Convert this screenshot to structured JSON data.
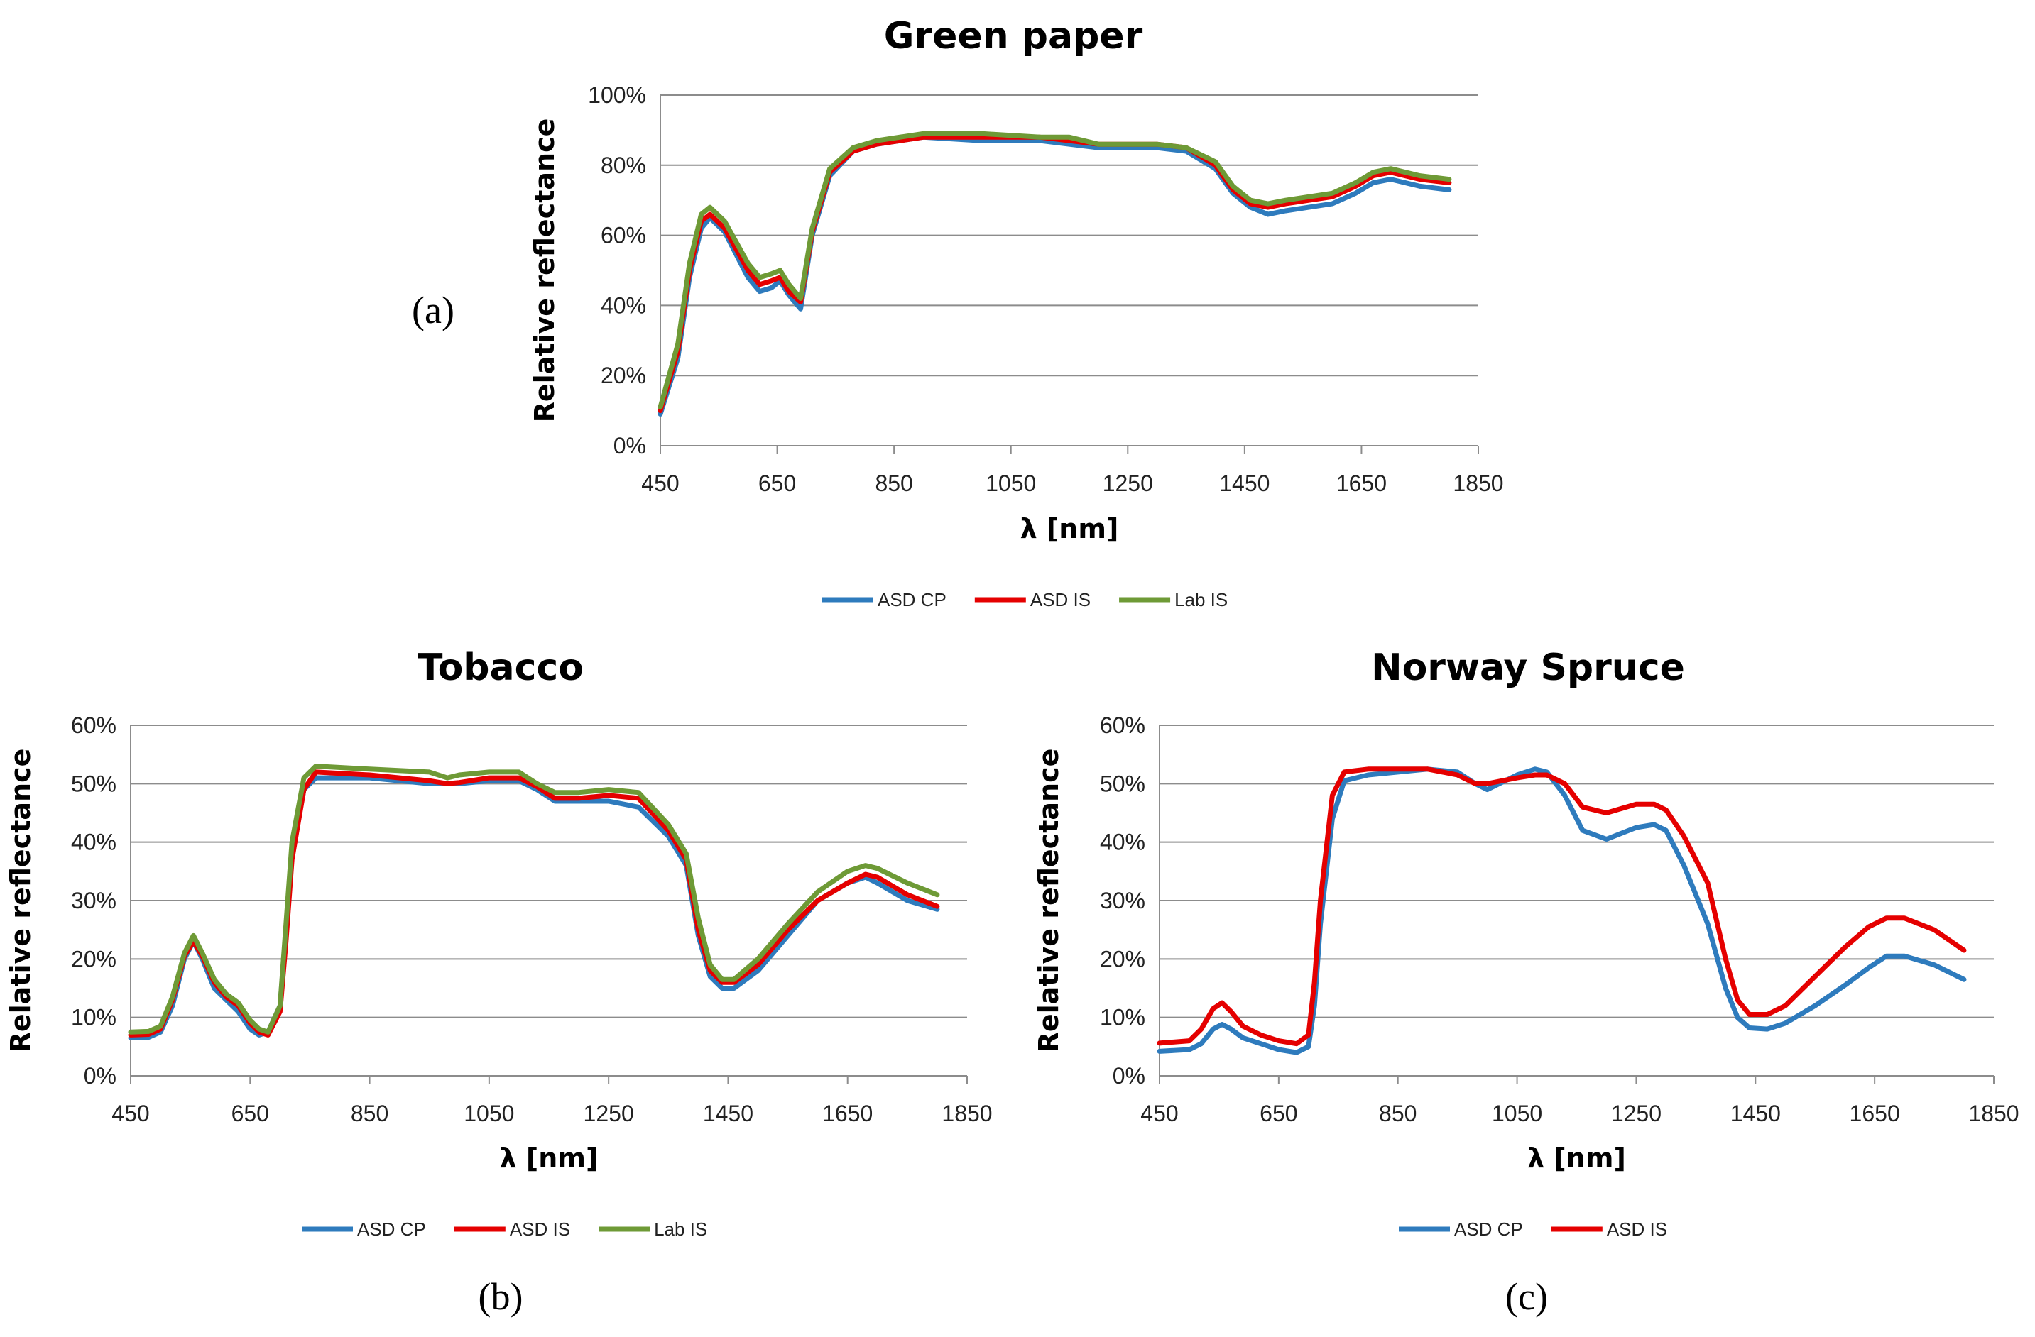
{
  "figure": {
    "panel_labels": [
      "(a)",
      "(b)",
      "(c)"
    ]
  },
  "colors": {
    "ASD CP": "#2e7bbd",
    "ASD IS": "#e50000",
    "Lab IS": "#6e9a36"
  },
  "chart_data": [
    {
      "type": "line",
      "title": "Green paper",
      "panel": "(a)",
      "xlabel": "λ [nm]",
      "ylabel": "Relative reflectance",
      "xlim": [
        450,
        1850
      ],
      "ylim": [
        0,
        100
      ],
      "xticks": [
        450,
        650,
        850,
        1050,
        1250,
        1450,
        1650,
        1850
      ],
      "yticks": [
        0,
        20,
        40,
        60,
        80,
        100
      ],
      "ytick_format": "percent",
      "grid": "horizontal",
      "legend": "bottom",
      "series": [
        {
          "name": "ASD CP",
          "x": [
            450,
            480,
            500,
            520,
            535,
            560,
            600,
            620,
            640,
            655,
            670,
            690,
            710,
            740,
            780,
            820,
            900,
            1000,
            1100,
            1150,
            1200,
            1250,
            1300,
            1350,
            1400,
            1430,
            1460,
            1490,
            1520,
            1600,
            1640,
            1670,
            1700,
            1750,
            1800
          ],
          "y": [
            9,
            25,
            48,
            62,
            65,
            61,
            48,
            44,
            45,
            47,
            43,
            39,
            60,
            77,
            84,
            86,
            88,
            87,
            87,
            86,
            85,
            85,
            85,
            84,
            79,
            72,
            68,
            66,
            67,
            69,
            72,
            75,
            76,
            74,
            73
          ]
        },
        {
          "name": "ASD IS",
          "x": [
            450,
            480,
            500,
            520,
            535,
            560,
            600,
            620,
            640,
            655,
            670,
            690,
            710,
            740,
            780,
            820,
            900,
            1000,
            1100,
            1150,
            1200,
            1250,
            1300,
            1350,
            1400,
            1430,
            1460,
            1490,
            1520,
            1600,
            1640,
            1670,
            1700,
            1750,
            1800
          ],
          "y": [
            10,
            27,
            50,
            64,
            66,
            62,
            50,
            46,
            47,
            48,
            44,
            41,
            61,
            78,
            84,
            86,
            88,
            88,
            88,
            87,
            86,
            86,
            86,
            85,
            80,
            73,
            69,
            68,
            69,
            71,
            74,
            77,
            78,
            76,
            75
          ]
        },
        {
          "name": "Lab IS",
          "x": [
            450,
            480,
            500,
            520,
            535,
            560,
            600,
            620,
            640,
            655,
            670,
            690,
            710,
            740,
            780,
            820,
            900,
            1000,
            1100,
            1150,
            1200,
            1250,
            1300,
            1350,
            1400,
            1430,
            1460,
            1490,
            1520,
            1600,
            1640,
            1670,
            1700,
            1750,
            1800
          ],
          "y": [
            11,
            29,
            52,
            66,
            68,
            64,
            52,
            48,
            49,
            50,
            46,
            42,
            62,
            79,
            85,
            87,
            89,
            89,
            88,
            88,
            86,
            86,
            86,
            85,
            81,
            74,
            70,
            69,
            70,
            72,
            75,
            78,
            79,
            77,
            76
          ]
        }
      ]
    },
    {
      "type": "line",
      "title": "Tobacco",
      "panel": "(b)",
      "xlabel": "λ [nm]",
      "ylabel": "Relative reflectance",
      "xlim": [
        450,
        1850
      ],
      "ylim": [
        0,
        60
      ],
      "xticks": [
        450,
        650,
        850,
        1050,
        1250,
        1450,
        1650,
        1850
      ],
      "yticks": [
        0,
        10,
        20,
        30,
        40,
        50,
        60
      ],
      "ytick_format": "percent",
      "grid": "horizontal",
      "legend": "bottom",
      "series": [
        {
          "name": "ASD CP",
          "x": [
            450,
            480,
            500,
            520,
            540,
            555,
            570,
            590,
            610,
            630,
            650,
            665,
            680,
            700,
            710,
            720,
            740,
            760,
            850,
            950,
            980,
            1000,
            1050,
            1100,
            1130,
            1160,
            1200,
            1250,
            1300,
            1350,
            1380,
            1400,
            1420,
            1440,
            1460,
            1500,
            1550,
            1600,
            1650,
            1680,
            1700,
            1750,
            1800
          ],
          "y": [
            6.5,
            6.6,
            7.5,
            12,
            20,
            23,
            20,
            15,
            13,
            11,
            8,
            7,
            7.5,
            12,
            25,
            38,
            49,
            51,
            51,
            50,
            50,
            50,
            50.5,
            50.5,
            49,
            47,
            47,
            47,
            46,
            41,
            36,
            24,
            17,
            15,
            15,
            18,
            24,
            30,
            33,
            34,
            33,
            30,
            28.5
          ]
        },
        {
          "name": "ASD IS",
          "x": [
            450,
            480,
            500,
            520,
            540,
            555,
            570,
            590,
            610,
            630,
            650,
            665,
            680,
            700,
            710,
            720,
            740,
            760,
            850,
            950,
            980,
            1000,
            1050,
            1100,
            1130,
            1160,
            1200,
            1250,
            1300,
            1350,
            1380,
            1400,
            1420,
            1440,
            1460,
            1500,
            1550,
            1600,
            1650,
            1680,
            1700,
            1750,
            1800
          ],
          "y": [
            7,
            7.1,
            8,
            13,
            20.5,
            23,
            20.5,
            16,
            13.5,
            12,
            9,
            7.5,
            7,
            11,
            23,
            37,
            49,
            52,
            51.5,
            50.5,
            50,
            50.2,
            51,
            51,
            49.5,
            47.5,
            47.5,
            48,
            47.5,
            42,
            37,
            25,
            18,
            16,
            16,
            19,
            25,
            30,
            33,
            34.5,
            34,
            31,
            29
          ]
        },
        {
          "name": "Lab IS",
          "x": [
            450,
            480,
            500,
            520,
            540,
            555,
            570,
            590,
            610,
            630,
            650,
            665,
            680,
            700,
            710,
            720,
            740,
            760,
            850,
            950,
            980,
            1000,
            1050,
            1100,
            1130,
            1160,
            1200,
            1250,
            1300,
            1350,
            1380,
            1400,
            1420,
            1440,
            1460,
            1500,
            1550,
            1600,
            1650,
            1680,
            1700,
            1750,
            1800
          ],
          "y": [
            7.5,
            7.6,
            8.5,
            13.5,
            21,
            24,
            21,
            16.5,
            14,
            12.5,
            9.5,
            8,
            7.5,
            12,
            26,
            40,
            51,
            53,
            52.5,
            52,
            51,
            51.5,
            52,
            52,
            50,
            48.5,
            48.5,
            49,
            48.5,
            43,
            38,
            27,
            19,
            16.5,
            16.5,
            20,
            26,
            31.5,
            35,
            36,
            35.5,
            33,
            31
          ]
        }
      ]
    },
    {
      "type": "line",
      "title": "Norway Spruce",
      "panel": "(c)",
      "xlabel": "λ [nm]",
      "ylabel": "Relative reflectance",
      "xlim": [
        450,
        1850
      ],
      "ylim": [
        0,
        60
      ],
      "xticks": [
        450,
        650,
        850,
        1050,
        1250,
        1450,
        1650,
        1850
      ],
      "yticks": [
        0,
        10,
        20,
        30,
        40,
        50,
        60
      ],
      "ytick_format": "percent",
      "grid": "horizontal",
      "legend": "bottom",
      "series": [
        {
          "name": "ASD CP",
          "x": [
            450,
            500,
            520,
            540,
            555,
            570,
            590,
            620,
            650,
            680,
            700,
            710,
            720,
            740,
            760,
            800,
            850,
            900,
            950,
            980,
            1000,
            1050,
            1080,
            1100,
            1130,
            1160,
            1200,
            1250,
            1280,
            1300,
            1330,
            1370,
            1400,
            1420,
            1440,
            1470,
            1500,
            1550,
            1600,
            1640,
            1670,
            1700,
            1750,
            1800
          ],
          "y": [
            4.2,
            4.5,
            5.5,
            8,
            8.8,
            8,
            6.5,
            5.5,
            4.5,
            4,
            5,
            12,
            26,
            44,
            50.5,
            51.5,
            52,
            52.5,
            52,
            50,
            49,
            51.5,
            52.5,
            52,
            48,
            42,
            40.5,
            42.5,
            43,
            42,
            36,
            26,
            15,
            10,
            8.2,
            8,
            9,
            12,
            15.5,
            18.5,
            20.5,
            20.5,
            19,
            16.5
          ]
        },
        {
          "name": "ASD IS",
          "x": [
            450,
            500,
            520,
            540,
            555,
            570,
            590,
            620,
            650,
            680,
            700,
            710,
            720,
            740,
            760,
            800,
            850,
            900,
            950,
            980,
            1000,
            1050,
            1080,
            1100,
            1130,
            1160,
            1200,
            1250,
            1280,
            1300,
            1330,
            1370,
            1400,
            1420,
            1440,
            1470,
            1500,
            1550,
            1600,
            1640,
            1670,
            1700,
            1750,
            1800
          ],
          "y": [
            5.6,
            6,
            8,
            11.5,
            12.5,
            11,
            8.5,
            7,
            6,
            5.5,
            7,
            16,
            30,
            48,
            52,
            52.5,
            52.5,
            52.5,
            51.5,
            50,
            50,
            51,
            51.5,
            51.5,
            50,
            46,
            45,
            46.5,
            46.5,
            45.5,
            41,
            33,
            20,
            13,
            10.5,
            10.5,
            12,
            17,
            22,
            25.5,
            27,
            27,
            25,
            21.5
          ]
        }
      ]
    }
  ]
}
